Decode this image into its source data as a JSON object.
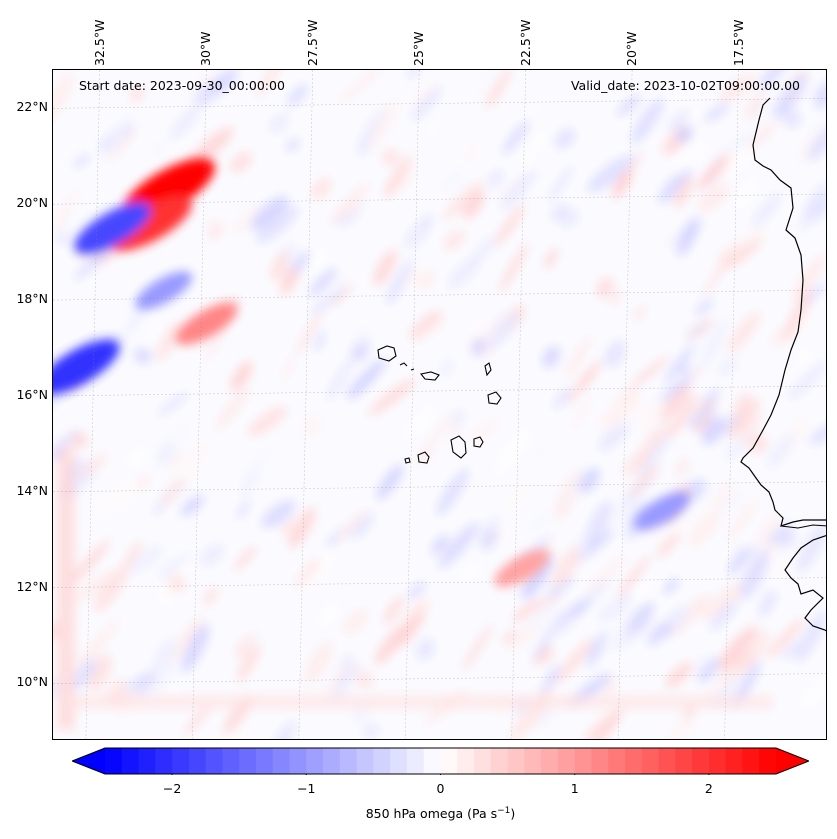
{
  "chart_data": {
    "type": "heatmap",
    "title": "",
    "variable_label": "850 hPa omega (Pa s",
    "variable_unit_sup": "−1",
    "variable_unit_close": ")",
    "start_date_text": "Start date: 2023-09-30_00:00:00",
    "valid_date_text": "Valid_date: 2023-10-02T09:00:00.00",
    "lon_range": [
      -33.6,
      -15.4
    ],
    "lat_range": [
      8.8,
      22.8
    ],
    "lon_ticks": [
      {
        "value": -32.5,
        "label": "32.5°W"
      },
      {
        "value": -30,
        "label": "30°W"
      },
      {
        "value": -27.5,
        "label": "27.5°W"
      },
      {
        "value": -25,
        "label": "25°W"
      },
      {
        "value": -22.5,
        "label": "22.5°W"
      },
      {
        "value": -20,
        "label": "20°W"
      },
      {
        "value": -17.5,
        "label": "17.5°W"
      }
    ],
    "lat_ticks": [
      {
        "value": 10,
        "label": "10°N"
      },
      {
        "value": 12,
        "label": "12°N"
      },
      {
        "value": 14,
        "label": "14°N"
      },
      {
        "value": 16,
        "label": "16°N"
      },
      {
        "value": 18,
        "label": "18°N"
      },
      {
        "value": 20,
        "label": "20°N"
      },
      {
        "value": 22,
        "label": "22°N"
      }
    ],
    "colorbar": {
      "min": -2.5,
      "max": 2.5,
      "extend": "both",
      "colormap": "bwr",
      "low_color": "#0000ff",
      "mid_color": "#ffffff",
      "high_color": "#ff0000",
      "ticks": [
        {
          "value": -2,
          "label": "−2"
        },
        {
          "value": -1,
          "label": "−1"
        },
        {
          "value": 0,
          "label": "0"
        },
        {
          "value": 1,
          "label": "1"
        },
        {
          "value": 2,
          "label": "2"
        }
      ]
    },
    "features": [
      {
        "name": "strong-ascent-north",
        "lon": -30.9,
        "lat": 20.3,
        "value": 2.5
      },
      {
        "name": "ascent-north-2",
        "lon": -31.3,
        "lat": 19.6,
        "value": 2.0
      },
      {
        "name": "ascent-band-17n",
        "lon": -30.0,
        "lat": 17.5,
        "value": 1.2
      },
      {
        "name": "descent-north",
        "lon": -32.2,
        "lat": 19.5,
        "value": -1.8
      },
      {
        "name": "descent-west-16n",
        "lon": -33.0,
        "lat": 16.6,
        "value": -2.0
      },
      {
        "name": "descent-18n",
        "lon": -31.0,
        "lat": 18.2,
        "value": -1.0
      },
      {
        "name": "ascent-12n",
        "lon": -22.6,
        "lat": 12.4,
        "value": 0.9
      },
      {
        "name": "descent-14n",
        "lon": -19.3,
        "lat": 13.6,
        "value": -1.0
      }
    ],
    "grid": true
  }
}
